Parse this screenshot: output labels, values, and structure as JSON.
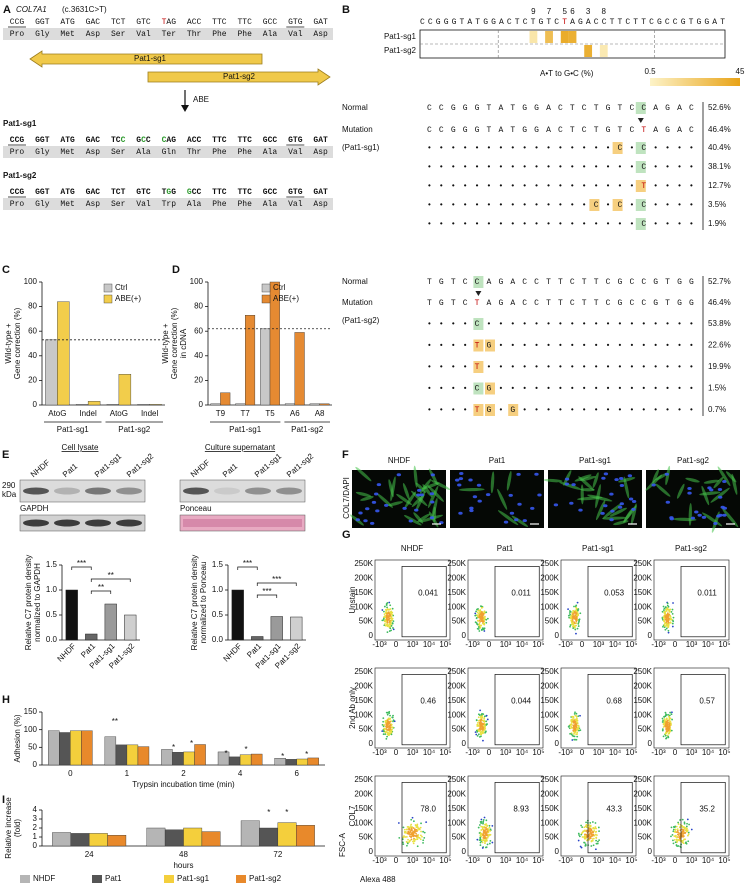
{
  "panels": {
    "A": {
      "label": "A",
      "gene": "COL7A1",
      "mutation": "(c.3631C>T)",
      "reference": {
        "codons": [
          "CCG",
          "GGT",
          "ATG",
          "GAC",
          "TCT",
          "GTC",
          "TAG",
          "ACC",
          "TTC",
          "TTC",
          "GCC",
          "GTG",
          "GAT"
        ],
        "amino_acids": [
          "Pro",
          "Gly",
          "Met",
          "Asp",
          "Ser",
          "Val",
          "Ter",
          "Thr",
          "Phe",
          "Phe",
          "Ala",
          "Val",
          "Asp"
        ]
      },
      "guides": [
        "Pat1-sg1",
        "Pat1-sg2"
      ],
      "editor": "ABE",
      "edits": [
        {
          "name": "Pat1-sg1",
          "codons": [
            "CCG",
            "GGT",
            "ATG",
            "GAC",
            "TCC",
            "GCC",
            "CAG",
            "ACC",
            "TTC",
            "TTC",
            "GCC",
            "GTG",
            "GAT"
          ],
          "amino_acids": [
            "Pro",
            "Gly",
            "Met",
            "Asp",
            "Ser",
            "Ala",
            "Gln",
            "Thr",
            "Phe",
            "Phe",
            "Ala",
            "Val",
            "Asp"
          ]
        },
        {
          "name": "Pat1-sg2",
          "codons": [
            "CCG",
            "GGT",
            "ATG",
            "GAC",
            "TCT",
            "GTC",
            "TGG",
            "GCC",
            "TTC",
            "TTC",
            "GCC",
            "GTG",
            "GAT"
          ],
          "amino_acids": [
            "Pro",
            "Gly",
            "Met",
            "Asp",
            "Ser",
            "Val",
            "Trp",
            "Ala",
            "Phe",
            "Phe",
            "Ala",
            "Val",
            "Asp"
          ]
        }
      ]
    },
    "B": {
      "label": "B",
      "sequence": "CCGGGTATGGACTCTGTCTAGACCTTCTTCGCCGTGGAT",
      "positions": [
        9,
        7,
        5,
        6,
        3,
        8
      ],
      "heatmap": {
        "rows": [
          "Pat1-sg1",
          "Pat1-sg2"
        ],
        "values": [
          [
            8,
            30,
            40,
            38,
            null,
            null
          ],
          [
            null,
            null,
            null,
            null,
            38,
            6
          ]
        ],
        "scale_title": "A•T to G•C (%)",
        "scale": [
          0.5,
          45
        ]
      },
      "alignments": [
        {
          "guide": "(Pat1-sg1)",
          "rows": [
            {
              "label": "Normal",
              "seq": "CCGGGTATGGACTCTGTCCAGAC",
              "pct": "52.6%"
            },
            {
              "label": "Mutation",
              "seq": "CCGGGTATGGACTCTGTCTAGAC",
              "pct": "46.4%"
            },
            {
              "seq": "••••••••••••••••C•C••••",
              "pct": "40.4%"
            },
            {
              "seq": "••••••••••••••••••C••••",
              "pct": "38.1%"
            },
            {
              "seq": "••••••••••••••••••T••••",
              "pct": "12.7%"
            },
            {
              "seq": "••••••••••••••C•C•C••••",
              "pct": "3.5%"
            },
            {
              "seq": "••••••••••••••••••C••••",
              "pct": "1.9%"
            }
          ]
        },
        {
          "guide": "(Pat1-sg2)",
          "rows": [
            {
              "label": "Normal",
              "seq": "TGTCCAGACCTTCTTCGCCGTGG",
              "pct": "52.7%"
            },
            {
              "label": "Mutation",
              "seq": "TGTCTAGACCTTCTTCGCCGTGG",
              "pct": "46.4%"
            },
            {
              "seq": "••••C••••••••••••••••••",
              "pct": "53.8%"
            },
            {
              "seq": "••••TG•••••••••••••••••",
              "pct": "22.6%"
            },
            {
              "seq": "••••T••••••••••••••••••",
              "pct": "19.9%"
            },
            {
              "seq": "••••CG•••••••••••••••••",
              "pct": "1.5%"
            },
            {
              "seq": "••••TG•G•••••••••••••••",
              "pct": "0.7%"
            }
          ]
        }
      ]
    },
    "E": {
      "label": "E",
      "titles": [
        "Cell lysate",
        "Culture supernatant"
      ],
      "lanes": [
        "NHDF",
        "Pat1",
        "Pat1-sg1",
        "Pat1-sg2"
      ],
      "marker": [
        "290",
        "kDa"
      ],
      "loading": [
        "GAPDH",
        "Ponceau"
      ]
    },
    "F": {
      "label": "F",
      "stain": [
        "COL7",
        "/DAPI"
      ],
      "samples": [
        "NHDF",
        "Pat1",
        "Pat1-sg1",
        "Pat1-sg2"
      ]
    },
    "G": {
      "label": "G",
      "samples": [
        "NHDF",
        "Pat1",
        "Pat1-sg1",
        "Pat1-sg2"
      ],
      "rows": [
        "Unstain",
        "2nd Ab only",
        "COL7"
      ],
      "gates": [
        [
          "0.041",
          "0.011",
          "0.053",
          "0.011"
        ],
        [
          "0.46",
          "0.044",
          "0.68",
          "0.57"
        ],
        [
          "78.0",
          "8.93",
          "43.3",
          "35.2"
        ]
      ],
      "y_ticks": [
        "250K",
        "200K",
        "150K",
        "100K",
        "50K",
        "0"
      ],
      "x_ticks": [
        "-10³",
        "0",
        "10³",
        "10⁴",
        "10⁵"
      ],
      "ylabel": "FSC-A",
      "xlabel": "Alexa 488"
    }
  },
  "chart_data": [
    {
      "type": "bar",
      "label": "C",
      "ylabel": [
        "Wild-type +",
        "Gene correction (%)"
      ],
      "categories": [
        "AtoG",
        "Indel",
        "AtoG",
        "Indel"
      ],
      "groups": [
        "Pat1-sg1",
        "Pat1-sg2"
      ],
      "series": [
        {
          "name": "Ctrl",
          "color": "#c8c8c8",
          "values": [
            53,
            0.5,
            0.5,
            0.5
          ]
        },
        {
          "name": "ABE(+)",
          "color": "#f2cd4b",
          "values": [
            84,
            3,
            25,
            0.5
          ]
        }
      ],
      "ylim": [
        0,
        100
      ],
      "yticks": [
        0,
        20,
        40,
        60,
        80,
        100
      ],
      "reference_line": 53,
      "legend": "top-right"
    },
    {
      "type": "bar",
      "label": "D",
      "ylabel": [
        "Wild-type +",
        "Gene correction (%)",
        "in cDNA"
      ],
      "categories": [
        "T9",
        "T7",
        "T5",
        "A6",
        "A8"
      ],
      "groups": [
        "Pat1-sg1",
        "Pat1-sg2"
      ],
      "series": [
        {
          "name": "Ctrl",
          "color": "#c8c8c8",
          "values": [
            1,
            1,
            62,
            1,
            1
          ]
        },
        {
          "name": "ABE(+)",
          "color": "#e58a32",
          "values": [
            10,
            73,
            100,
            59,
            1
          ]
        }
      ],
      "ylim": [
        0,
        100
      ],
      "yticks": [
        0,
        20,
        40,
        60,
        80,
        100
      ],
      "reference_line": 62,
      "legend": "top-right"
    },
    {
      "type": "bar",
      "ylabel": [
        "Relative C7 protein density",
        "normalized to GAPDH"
      ],
      "categories": [
        "NHDF",
        "Pat1",
        "Pat1-sg1",
        "Pat1-sg2"
      ],
      "values": [
        1.0,
        0.12,
        0.72,
        0.5
      ],
      "colors": [
        "#111111",
        "#666666",
        "#9a9a9a",
        "#cfcfcf"
      ],
      "ylim": [
        0,
        1.5
      ],
      "yticks": [
        {
          "value": 0,
          "label": "0.0"
        },
        {
          "value": 0.5,
          "label": "0.5"
        },
        {
          "value": 1,
          "label": "1.0"
        },
        {
          "value": 1.5,
          "label": "1.5"
        }
      ],
      "annotations": [
        "***",
        "**",
        "**"
      ]
    },
    {
      "type": "bar",
      "ylabel": [
        "Relative C7 protein density",
        "normalized to Ponceau"
      ],
      "categories": [
        "NHDF",
        "Pat1",
        "Pat1-sg1",
        "Pat1-sg2"
      ],
      "values": [
        1.0,
        0.07,
        0.47,
        0.46
      ],
      "colors": [
        "#111111",
        "#666666",
        "#9a9a9a",
        "#cfcfcf"
      ],
      "ylim": [
        0,
        1.5
      ],
      "yticks": [
        {
          "value": 0,
          "label": "0.0"
        },
        {
          "value": 0.5,
          "label": "0.5"
        },
        {
          "value": 1,
          "label": "1.0"
        },
        {
          "value": 1.5,
          "label": "1.5"
        }
      ],
      "annotations": [
        "***",
        "***",
        "***"
      ]
    },
    {
      "type": "bar",
      "label": "H",
      "ylabel": [
        "Adhesion (%)"
      ],
      "xlabel": "Trypsin incubation time (min)",
      "categories": [
        "0",
        "1",
        "2",
        "4",
        "6"
      ],
      "series": [
        {
          "color": "#b5b5b5",
          "values": [
            97,
            80,
            44,
            37,
            19
          ]
        },
        {
          "color": "#555555",
          "values": [
            92,
            57,
            36,
            23,
            16
          ]
        },
        {
          "color": "#f4cf3c",
          "values": [
            97,
            57,
            37,
            29,
            17
          ]
        },
        {
          "color": "#e8892b",
          "values": [
            97,
            52,
            58,
            31,
            20
          ]
        }
      ],
      "ylim": [
        0,
        150
      ],
      "yticks": [
        0,
        50,
        100,
        150
      ],
      "annotations": [
        "**",
        "*",
        "*",
        "*",
        "*",
        "*",
        "*"
      ]
    },
    {
      "type": "bar",
      "label": "I",
      "ylabel": [
        "Relative increase",
        "(fold)"
      ],
      "xlabel": "hours",
      "categories": [
        "24",
        "48",
        "72"
      ],
      "series": [
        {
          "name": "NHDF",
          "color": "#b5b5b5",
          "values": [
            1.5,
            2.0,
            2.8
          ]
        },
        {
          "name": "Pat1",
          "color": "#555555",
          "values": [
            1.4,
            1.8,
            2.0
          ]
        },
        {
          "name": "Pat1-sg1",
          "color": "#f4cf3c",
          "values": [
            1.4,
            2.0,
            2.6
          ]
        },
        {
          "name": "Pat1-sg2",
          "color": "#e8892b",
          "values": [
            1.2,
            1.6,
            2.3
          ]
        }
      ],
      "ylim": [
        0,
        4
      ],
      "yticks": [
        0,
        1,
        2,
        3,
        4
      ],
      "annotations": [
        "*",
        "*"
      ],
      "legend": "bottom"
    }
  ]
}
